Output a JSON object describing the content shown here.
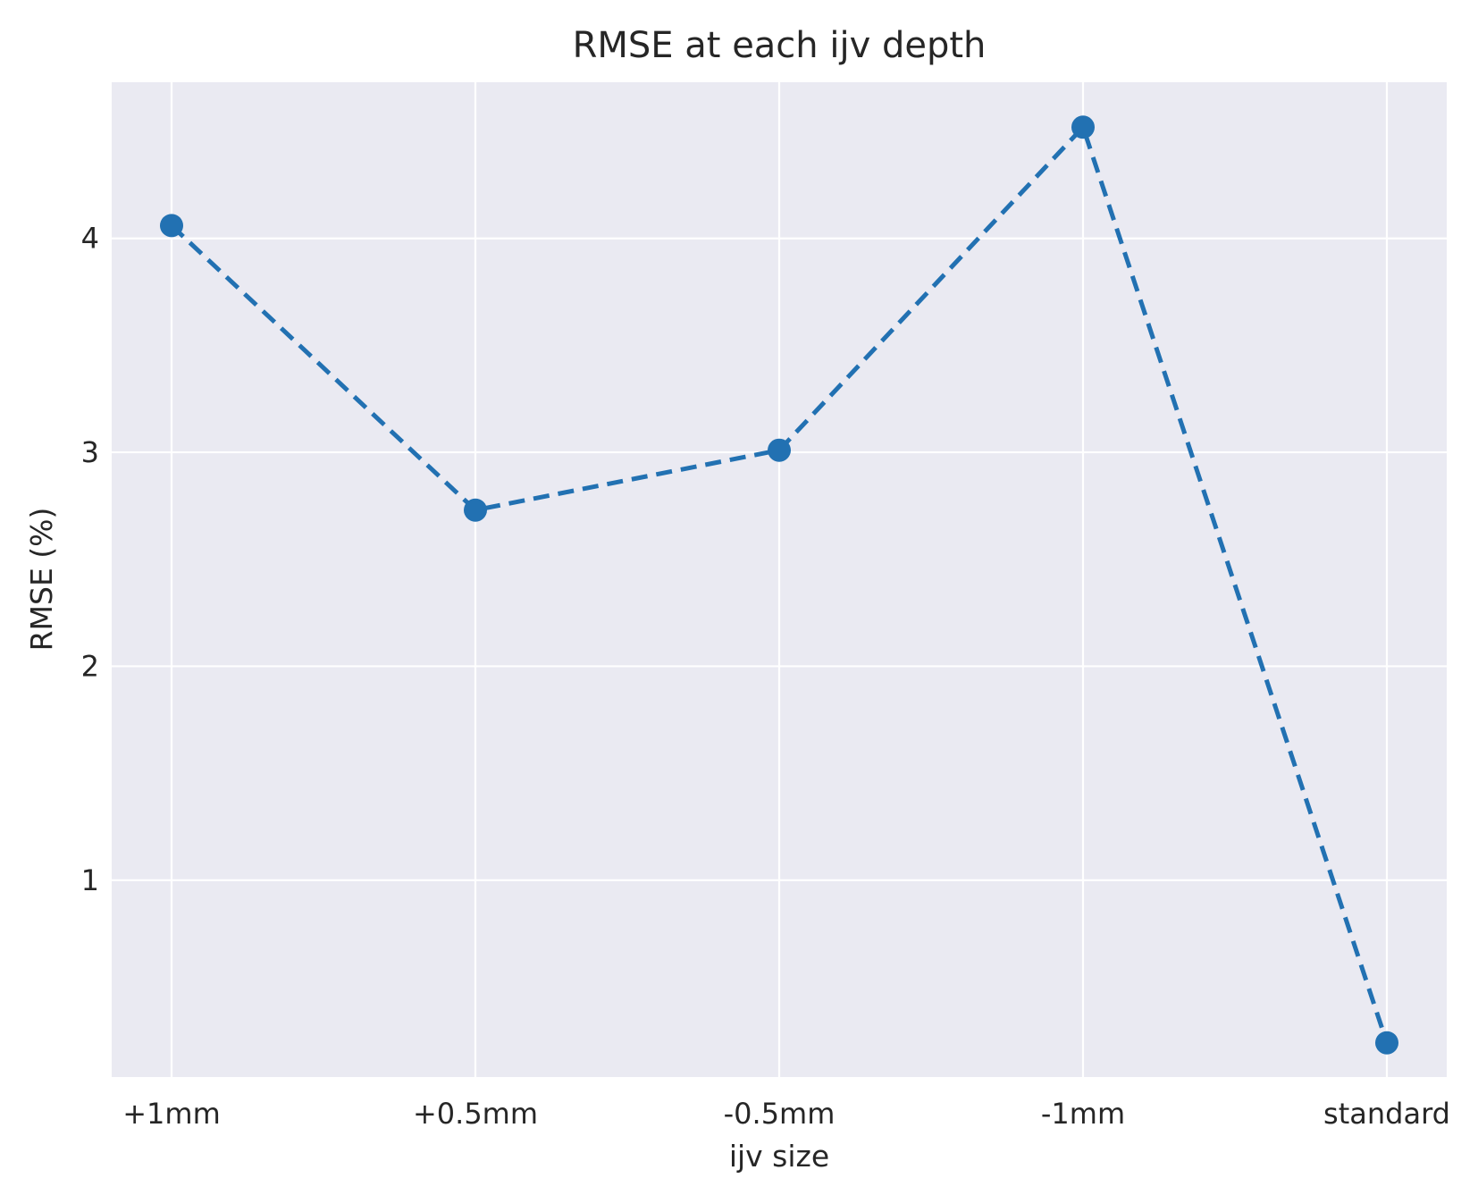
{
  "chart_data": {
    "type": "line",
    "title": "RMSE at each ijv depth",
    "xlabel": "ijv size",
    "ylabel": "RMSE (%)",
    "categories": [
      "+1mm",
      "+0.5mm",
      "-0.5mm",
      "-1mm",
      "standard"
    ],
    "series": [
      {
        "values": [
          4.06,
          2.73,
          3.01,
          4.52,
          0.24
        ]
      }
    ],
    "ylim": [
      0.08,
      4.73
    ],
    "yticks": [
      1,
      2,
      3,
      4
    ],
    "grid": true,
    "line_style": "dashed",
    "marker": "circle",
    "colors": {
      "series": "#2271b2",
      "background": "#eaeaf2",
      "grid": "#ffffff"
    }
  }
}
